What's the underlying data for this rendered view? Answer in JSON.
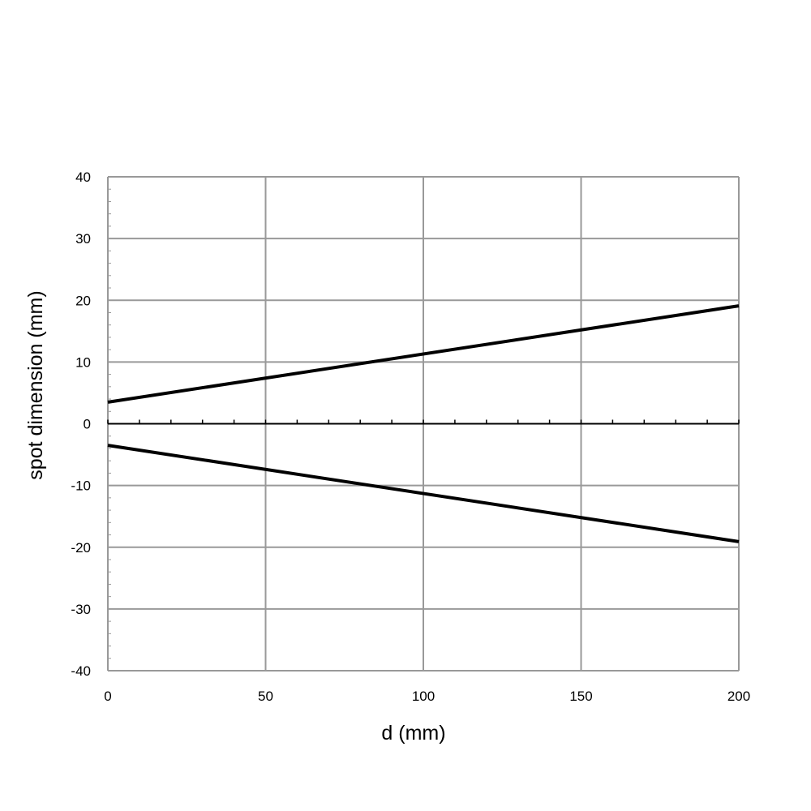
{
  "chart_data": {
    "type": "line",
    "title": "",
    "xlabel": "d (mm)",
    "ylabel": "spot dimension (mm)",
    "xlim": [
      0,
      200
    ],
    "ylim": [
      -40,
      40
    ],
    "xticks": [
      0,
      50,
      100,
      150,
      200
    ],
    "yticks": [
      40,
      30,
      20,
      10,
      0,
      -10,
      -20,
      -30,
      -40
    ],
    "xtick_labels": [
      "0",
      "50",
      "100",
      "150",
      "200"
    ],
    "ytick_labels": [
      "40",
      "30",
      "20",
      "10",
      "0",
      "-10",
      "-20",
      "-30",
      "-40"
    ],
    "grid": true,
    "legend": "none",
    "series": [
      {
        "x": [
          0,
          200
        ],
        "y": [
          3.5,
          19.1
        ]
      },
      {
        "x": [
          0,
          200
        ],
        "y": [
          -3.5,
          -19.1
        ]
      }
    ]
  },
  "colors": {
    "line": "#000000",
    "grid": "#999999",
    "zero_axis": "#000000",
    "background": "#ffffff"
  }
}
